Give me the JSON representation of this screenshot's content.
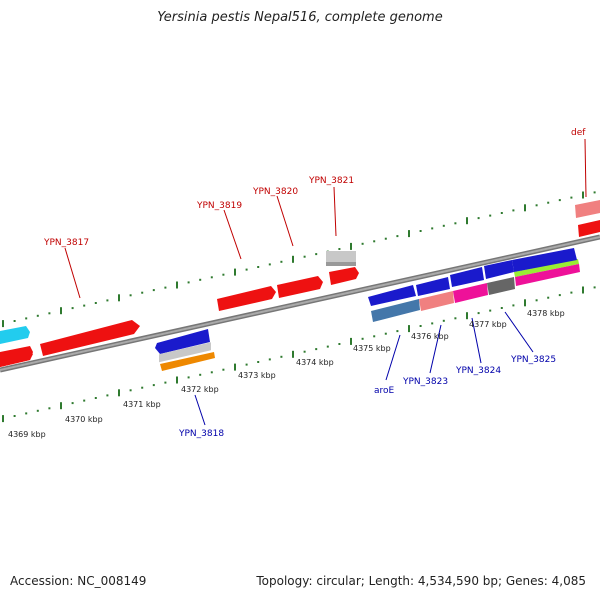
{
  "title": "Yersinia pestis Nepal516, complete genome",
  "footer": {
    "accession": "Accession: NC_008149",
    "summary": "Topology: circular; Length: 4,534,590 bp; Genes: 4,085"
  },
  "axis_ticks": [
    "4369 kbp",
    "4370 kbp",
    "4371 kbp",
    "4372 kbp",
    "4373 kbp",
    "4374 kbp",
    "4375 kbp",
    "4376 kbp",
    "4377 kbp",
    "4378 kbp"
  ],
  "gene_labels_forward": [
    "YPN_3817",
    "YPN_3819",
    "YPN_3820",
    "YPN_3821",
    "def"
  ],
  "gene_labels_reverse": [
    "YPN_3818",
    "aroE",
    "YPN_3823",
    "YPN_3824",
    "YPN_3825"
  ],
  "colors": {
    "backbone": "#808080",
    "tick": "#2f7a2f",
    "forward_gene": "#ee1111",
    "reverse_gene": "#1a1acc",
    "label_forward": "#c00000",
    "label_reverse": "#0000aa"
  }
}
